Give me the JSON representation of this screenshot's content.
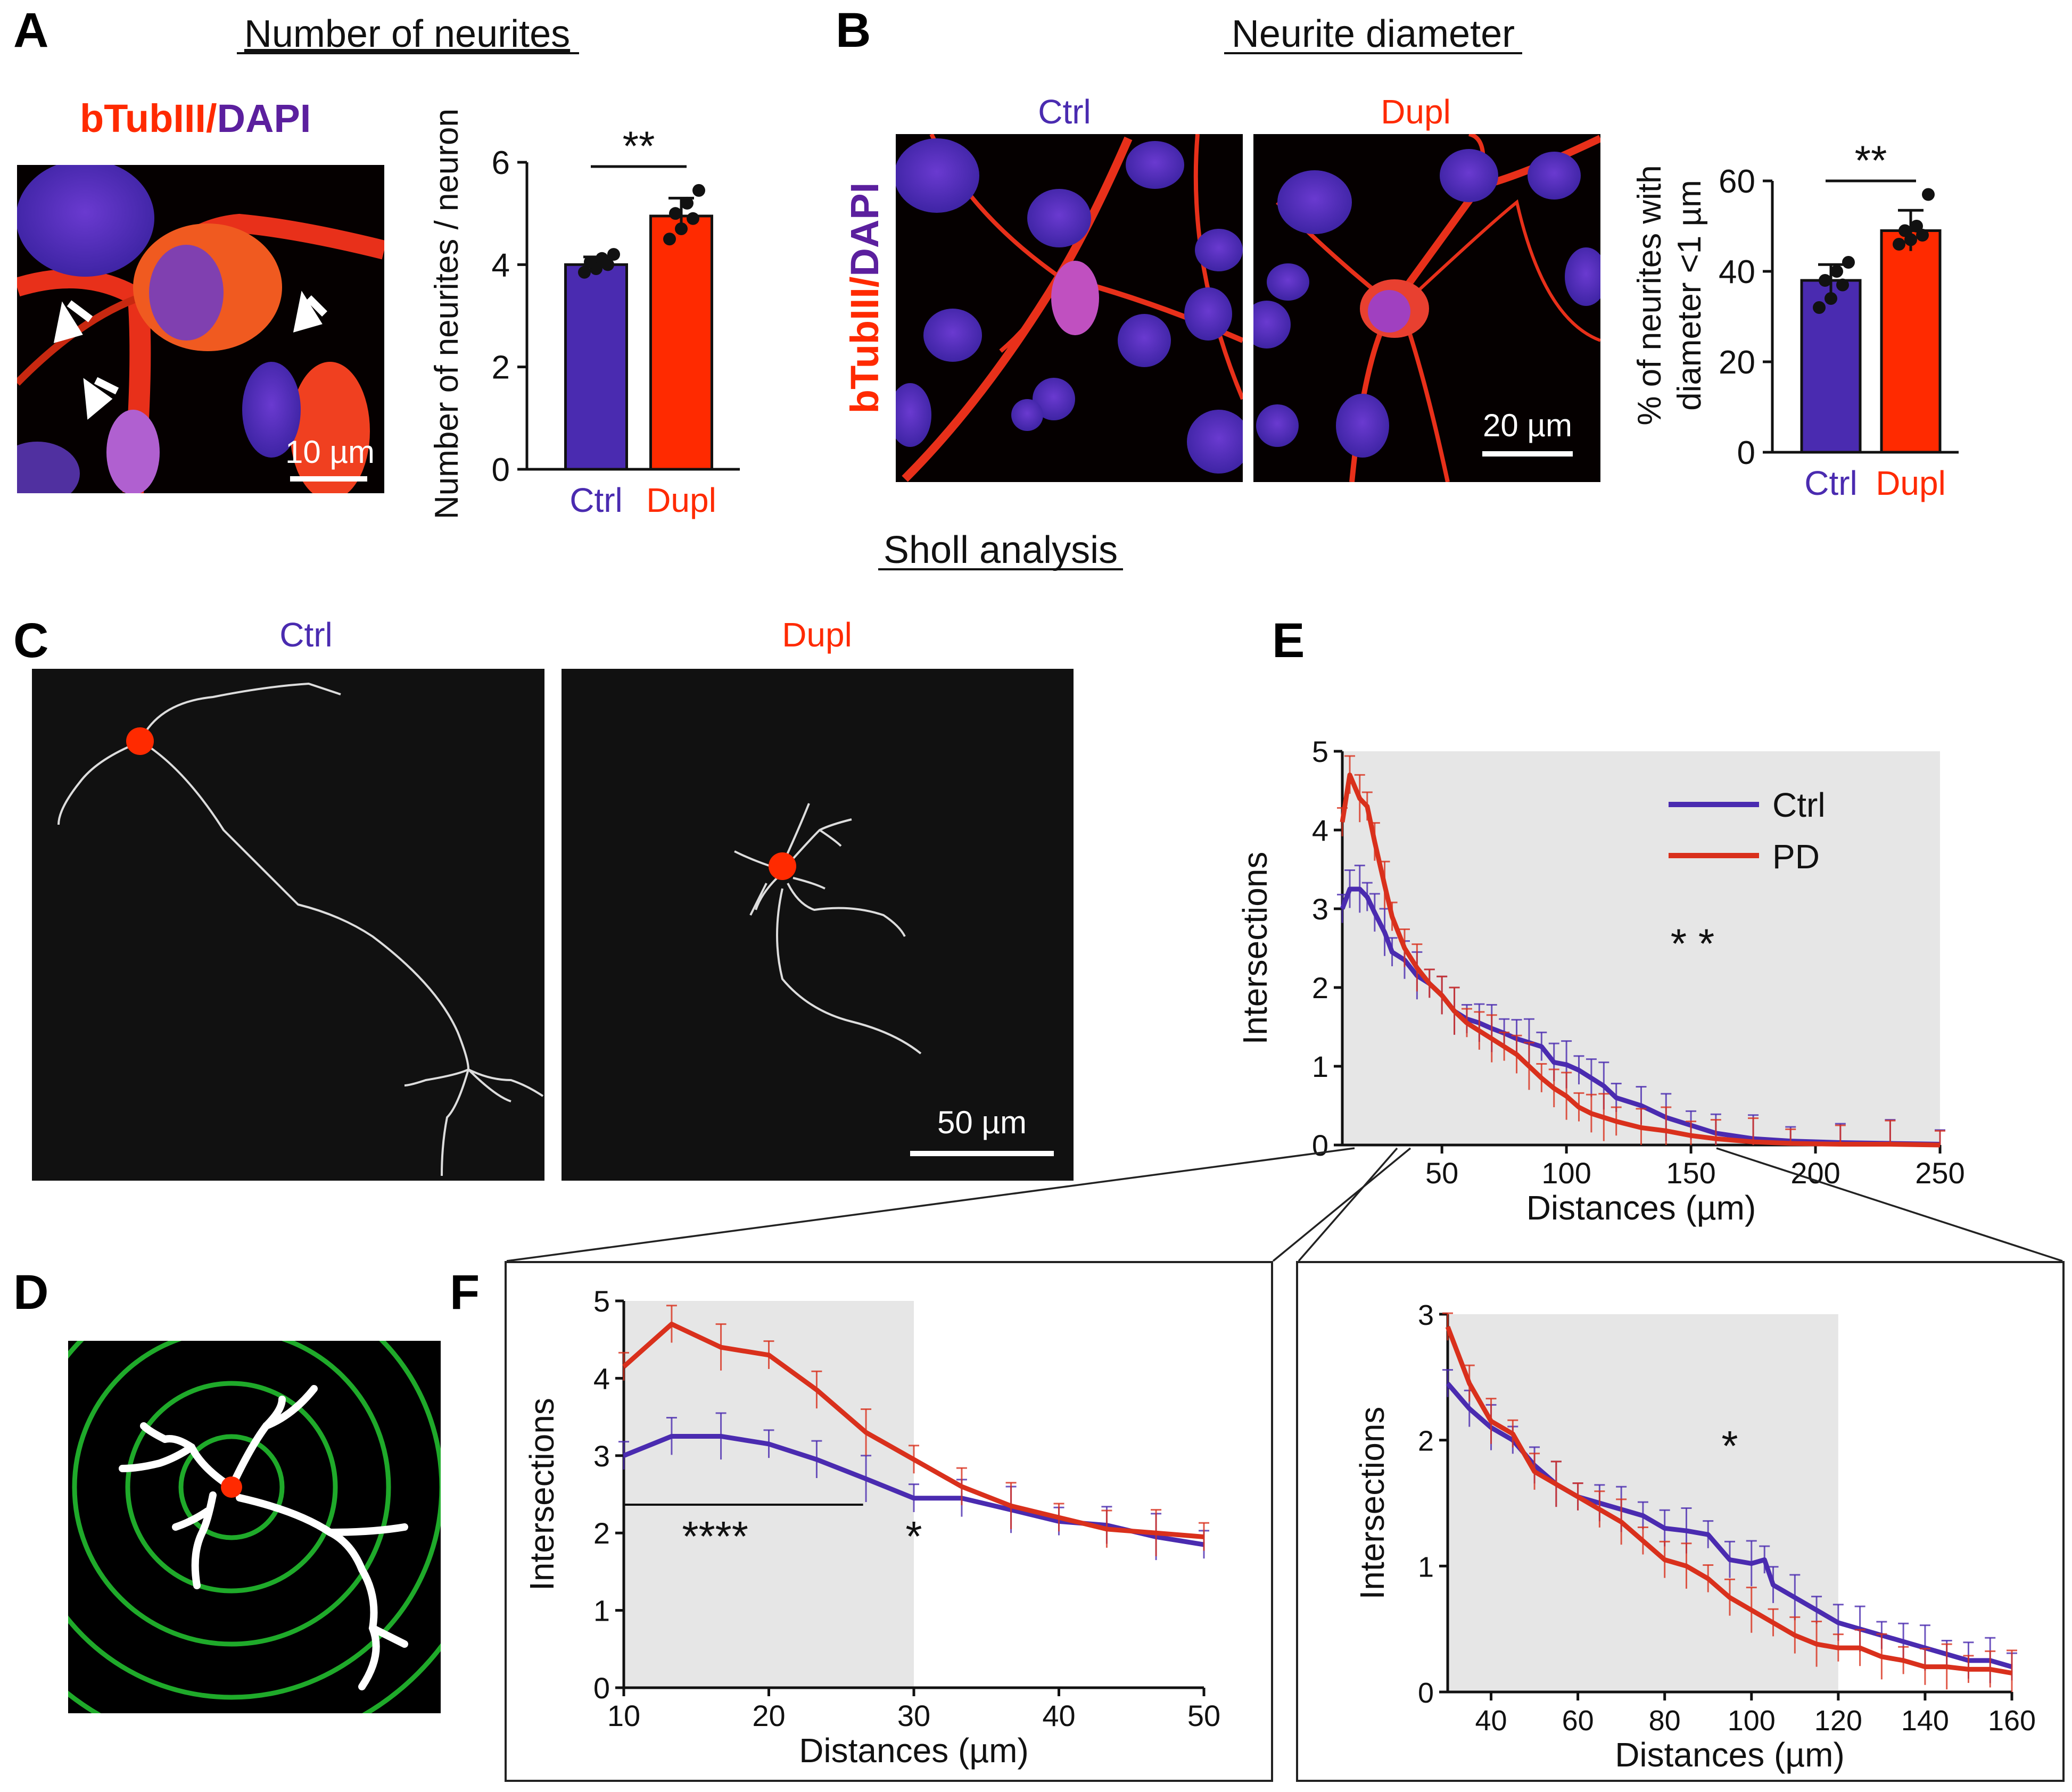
{
  "panels": {
    "A": "A",
    "B": "B",
    "C": "C",
    "D": "D",
    "E": "E",
    "F": "F"
  },
  "titles": {
    "number_of_neurites": "Number of neurites",
    "neurite_diameter": "Neurite diameter",
    "sholl_analysis": "Sholl analysis"
  },
  "stain": {
    "btub": "bTubIII",
    "slash": "/",
    "dapi": "DAPI"
  },
  "labels": {
    "ctrl": "Ctrl",
    "dupl": "Dupl",
    "pd": "PD"
  },
  "scalebars": {
    "a": "10 µm",
    "b": "20 µm",
    "c": "50 µm"
  },
  "colors": {
    "ctrl": "#4a2bb0",
    "dupl": "#ff2a00",
    "pd": "#d9301c",
    "dapi": "#5b1f9e",
    "shade": "#e6e6e6"
  },
  "chart_data": [
    {
      "id": "A",
      "type": "bar",
      "categories": [
        "Ctrl",
        "Dupl"
      ],
      "values": [
        4.0,
        4.95
      ],
      "errors": [
        0.15,
        0.35
      ],
      "points": [
        [
          3.85,
          3.92,
          4.0,
          4.05,
          4.12,
          4.2
        ],
        [
          4.5,
          4.7,
          4.9,
          5.0,
          5.2,
          5.45
        ]
      ],
      "ylabel": "Number of neurites / neuron",
      "ylim": [
        0,
        6
      ],
      "yticks": [
        "0",
        "2",
        "4",
        "6"
      ],
      "significance": "**"
    },
    {
      "id": "B",
      "type": "bar",
      "categories": [
        "Ctrl",
        "Dupl"
      ],
      "values": [
        38,
        49
      ],
      "errors": [
        3.5,
        4.5
      ],
      "points": [
        [
          32,
          34,
          37,
          38,
          40,
          42
        ],
        [
          46,
          47,
          48,
          49,
          50,
          57
        ]
      ],
      "ylabel": "% of neurites with diameter <1 µm",
      "ylim": [
        0,
        60
      ],
      "yticks": [
        "0",
        "20",
        "40",
        "60"
      ],
      "significance": "**"
    },
    {
      "id": "E",
      "type": "line",
      "xlabel": "Distances (µm)",
      "ylabel": "Intersections",
      "xlim": [
        10,
        250
      ],
      "ylim": [
        0,
        5
      ],
      "xticks": [
        "50",
        "100",
        "150",
        "200",
        "250"
      ],
      "yticks": [
        "0",
        "1",
        "2",
        "3",
        "4",
        "5"
      ],
      "legend": [
        "Ctrl",
        "PD"
      ],
      "significance": "* *",
      "series": [
        {
          "name": "Ctrl",
          "x": [
            10,
            13,
            17,
            20,
            23,
            27,
            30,
            35,
            40,
            45,
            50,
            55,
            60,
            65,
            70,
            75,
            80,
            85,
            90,
            95,
            100,
            105,
            110,
            115,
            120,
            130,
            140,
            150,
            160,
            175,
            190,
            210,
            230,
            250
          ],
          "y": [
            3.0,
            3.25,
            3.25,
            3.15,
            2.95,
            2.7,
            2.45,
            2.35,
            2.15,
            2.05,
            1.9,
            1.7,
            1.6,
            1.55,
            1.48,
            1.42,
            1.35,
            1.3,
            1.25,
            1.05,
            1.02,
            0.95,
            0.85,
            0.75,
            0.6,
            0.5,
            0.35,
            0.25,
            0.15,
            0.08,
            0.05,
            0.03,
            0.02,
            0.01
          ]
        },
        {
          "name": "PD",
          "x": [
            10,
            13,
            17,
            20,
            23,
            27,
            30,
            35,
            40,
            45,
            50,
            55,
            60,
            65,
            70,
            75,
            80,
            85,
            90,
            95,
            100,
            105,
            110,
            115,
            120,
            130,
            140,
            150,
            160,
            175,
            190,
            210,
            230,
            250
          ],
          "y": [
            4.1,
            4.7,
            4.4,
            4.3,
            3.85,
            3.3,
            2.9,
            2.5,
            2.25,
            2.05,
            1.9,
            1.7,
            1.55,
            1.45,
            1.35,
            1.25,
            1.15,
            1.0,
            0.85,
            0.72,
            0.62,
            0.48,
            0.4,
            0.35,
            0.3,
            0.22,
            0.18,
            0.12,
            0.08,
            0.04,
            0.02,
            0.01,
            0.01,
            0.0
          ]
        }
      ]
    },
    {
      "id": "F1",
      "type": "line",
      "xlabel": "Distances (µm)",
      "ylabel": "Intersections",
      "xlim": [
        10,
        50
      ],
      "ylim": [
        0,
        5
      ],
      "xticks": [
        "10",
        "20",
        "30",
        "40",
        "50"
      ],
      "yticks": [
        "0",
        "1",
        "2",
        "3",
        "4",
        "5"
      ],
      "annotations": [
        "****",
        "*"
      ],
      "series": [
        {
          "name": "Ctrl",
          "x": [
            10,
            13.3,
            16.7,
            20,
            23.3,
            26.7,
            30,
            33.3,
            36.7,
            40,
            43.3,
            46.7,
            50
          ],
          "y": [
            3.0,
            3.25,
            3.25,
            3.15,
            2.95,
            2.7,
            2.45,
            2.45,
            2.3,
            2.15,
            2.1,
            1.95,
            1.85
          ]
        },
        {
          "name": "PD",
          "x": [
            10,
            13.3,
            16.7,
            20,
            23.3,
            26.7,
            30,
            33.3,
            36.7,
            40,
            43.3,
            46.7,
            50
          ],
          "y": [
            4.15,
            4.7,
            4.4,
            4.3,
            3.85,
            3.3,
            2.95,
            2.6,
            2.35,
            2.2,
            2.05,
            2.0,
            1.95
          ]
        }
      ]
    },
    {
      "id": "F2",
      "type": "line",
      "xlabel": "Distances (µm)",
      "ylabel": "Intersections",
      "xlim": [
        30,
        160
      ],
      "ylim": [
        0,
        3
      ],
      "xticks": [
        "40",
        "60",
        "80",
        "100",
        "120",
        "140",
        "160"
      ],
      "yticks": [
        "0",
        "1",
        "2",
        "3"
      ],
      "annotations": [
        "*"
      ],
      "series": [
        {
          "name": "Ctrl",
          "x": [
            30,
            35,
            40,
            45,
            50,
            55,
            60,
            65,
            70,
            75,
            80,
            85,
            90,
            95,
            100,
            103,
            105,
            110,
            115,
            120,
            125,
            130,
            135,
            140,
            145,
            150,
            155,
            160
          ],
          "y": [
            2.45,
            2.25,
            2.1,
            2.0,
            1.8,
            1.65,
            1.55,
            1.5,
            1.45,
            1.4,
            1.3,
            1.28,
            1.25,
            1.05,
            1.02,
            1.05,
            0.85,
            0.75,
            0.65,
            0.55,
            0.5,
            0.45,
            0.4,
            0.35,
            0.3,
            0.25,
            0.25,
            0.2
          ]
        },
        {
          "name": "PD",
          "x": [
            30,
            35,
            40,
            45,
            50,
            55,
            60,
            65,
            70,
            75,
            80,
            85,
            90,
            95,
            100,
            105,
            110,
            115,
            120,
            125,
            130,
            135,
            140,
            145,
            150,
            155,
            160
          ],
          "y": [
            2.9,
            2.45,
            2.15,
            2.05,
            1.75,
            1.65,
            1.55,
            1.45,
            1.35,
            1.2,
            1.05,
            1.0,
            0.9,
            0.75,
            0.65,
            0.55,
            0.45,
            0.38,
            0.35,
            0.35,
            0.28,
            0.25,
            0.2,
            0.2,
            0.18,
            0.18,
            0.15
          ]
        }
      ]
    }
  ]
}
